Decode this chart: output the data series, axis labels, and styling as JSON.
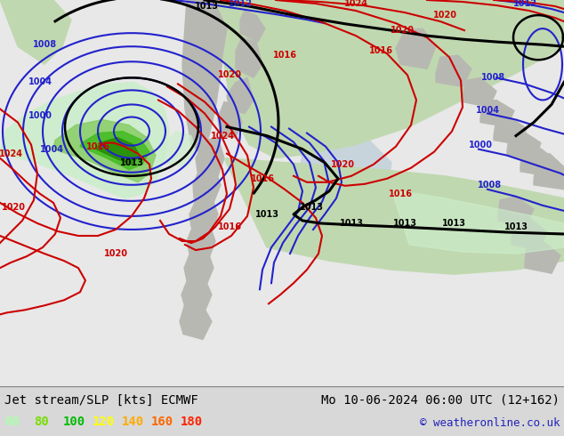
{
  "title_left": "Jet stream/SLP [kts] ECMWF",
  "title_right": "Mo 10-06-2024 06:00 UTC (12+162)",
  "copyright": "© weatheronline.co.uk",
  "legend_values": [
    60,
    80,
    100,
    120,
    140,
    160,
    180
  ],
  "legend_colors": [
    "#aaffaa",
    "#77dd00",
    "#00bb00",
    "#ffff00",
    "#ffaa00",
    "#ff6600",
    "#ff2200"
  ],
  "bg_color": "#d8d8d8",
  "ocean_color": "#d0dce8",
  "land_gray": "#b8b8b4",
  "land_green": "#a8c898",
  "figsize": [
    6.34,
    4.9
  ],
  "dpi": 100
}
